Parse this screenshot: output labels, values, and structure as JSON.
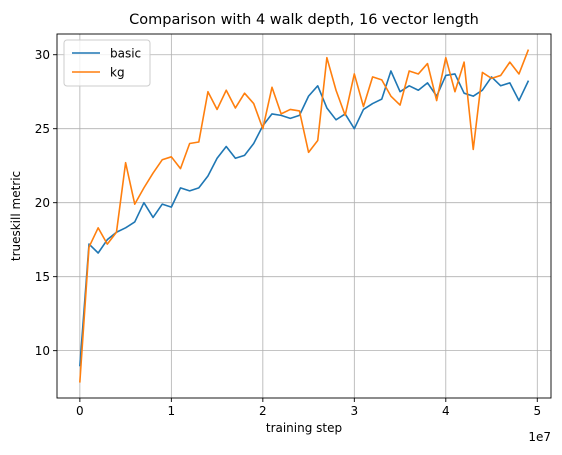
{
  "chart_data": {
    "type": "line",
    "title": "Comparison with 4 walk depth, 16 vector length",
    "xlabel": "training step",
    "ylabel": "trueskill metric",
    "x_offset_label": "1e7",
    "xlim": [
      -0.25,
      5.15
    ],
    "ylim": [
      6.8,
      31.4
    ],
    "x_ticks": [
      0,
      1,
      2,
      3,
      4,
      5
    ],
    "x_tick_labels": [
      "0",
      "1",
      "2",
      "3",
      "4",
      "5"
    ],
    "y_ticks": [
      10,
      15,
      20,
      25,
      30
    ],
    "y_tick_labels": [
      "10",
      "15",
      "20",
      "25",
      "30"
    ],
    "grid": true,
    "legend_position": "top-left",
    "x": [
      0,
      0.1,
      0.2,
      0.3,
      0.4,
      0.5,
      0.6,
      0.7,
      0.8,
      0.9,
      1.0,
      1.1,
      1.2,
      1.3,
      1.4,
      1.5,
      1.6,
      1.7,
      1.8,
      1.9,
      2.0,
      2.1,
      2.2,
      2.3,
      2.4,
      2.5,
      2.6,
      2.7,
      2.8,
      2.9,
      3.0,
      3.1,
      3.2,
      3.3,
      3.4,
      3.5,
      3.6,
      3.7,
      3.8,
      3.9,
      4.0,
      4.1,
      4.2,
      4.3,
      4.4,
      4.5,
      4.6,
      4.7,
      4.8,
      4.9
    ],
    "series": [
      {
        "name": "basic",
        "color": "#1f77b4",
        "values": [
          9.0,
          17.2,
          16.6,
          17.5,
          18.0,
          18.3,
          18.7,
          20.0,
          19.0,
          19.9,
          19.7,
          21.0,
          20.8,
          21.0,
          21.8,
          23.0,
          23.8,
          23.0,
          23.2,
          24.0,
          25.2,
          26.0,
          25.9,
          25.7,
          25.9,
          27.2,
          27.9,
          26.4,
          25.6,
          26.0,
          25.0,
          26.3,
          26.7,
          27.0,
          28.9,
          27.5,
          27.9,
          27.6,
          28.1,
          27.2,
          28.6,
          28.7,
          27.4,
          27.2,
          27.6,
          28.5,
          27.9,
          28.1,
          26.9,
          28.2
        ]
      },
      {
        "name": "kg",
        "color": "#ff7f0e",
        "values": [
          7.9,
          17.0,
          18.3,
          17.2,
          18.0,
          22.7,
          19.9,
          21.0,
          22.0,
          22.9,
          23.1,
          22.3,
          24.0,
          24.1,
          27.5,
          26.3,
          27.6,
          26.4,
          27.4,
          26.7,
          25.0,
          27.8,
          26.0,
          26.3,
          26.2,
          23.4,
          24.2,
          29.8,
          27.6,
          25.9,
          28.7,
          26.5,
          28.5,
          28.3,
          27.2,
          26.6,
          28.9,
          28.7,
          29.4,
          26.9,
          29.8,
          27.5,
          29.5,
          23.6,
          28.8,
          28.4,
          28.6,
          29.5,
          28.7,
          30.3
        ]
      }
    ]
  }
}
